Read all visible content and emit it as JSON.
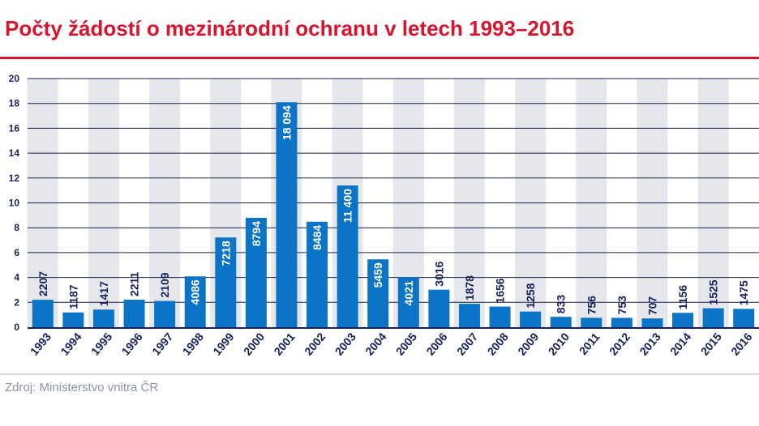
{
  "chart_data": {
    "type": "bar",
    "title": "Počty žádostí o mezinárodní ochranu v letech 1993–2016",
    "xlabel": "",
    "ylabel": "",
    "ylim": [
      0,
      20
    ],
    "yticks": [
      "0",
      "2",
      "4",
      "6",
      "8",
      "10",
      "12",
      "14",
      "16",
      "18",
      "20"
    ],
    "grid": true,
    "legend": "none",
    "categories": [
      "1993",
      "1994",
      "1995",
      "1996",
      "1997",
      "1998",
      "1999",
      "2000",
      "2001",
      "2002",
      "2003",
      "2004",
      "2005",
      "2006",
      "2007",
      "2008",
      "2009",
      "2010",
      "2011",
      "2012",
      "2013",
      "2014",
      "2015",
      "2016"
    ],
    "values": [
      2207,
      1187,
      1417,
      2211,
      2109,
      4086,
      7218,
      8794,
      18094,
      8484,
      11400,
      5459,
      4021,
      3016,
      1878,
      1656,
      1258,
      833,
      756,
      753,
      707,
      1156,
      1525,
      1475
    ],
    "value_labels": [
      "2207",
      "1187",
      "1417",
      "2211",
      "2109",
      "4086",
      "7218",
      "8794",
      "18 094",
      "8484",
      "11 400",
      "5459",
      "4021",
      "3016",
      "1878",
      "1656",
      "1258",
      "833",
      "756",
      "753",
      "707",
      "1156",
      "1525",
      "1475"
    ],
    "value_scale": 1000,
    "source": "Zdroj: Ministerstvo vnitra ČR"
  },
  "colors": {
    "bar": "#0b74c6",
    "band": "#e6e7ec",
    "label_dark": "#15215a",
    "label_light": "#ffffff",
    "axis_text": "#15215a",
    "title": "#d7152f",
    "gridline": "#1a2245",
    "source": "#8a93a6"
  }
}
